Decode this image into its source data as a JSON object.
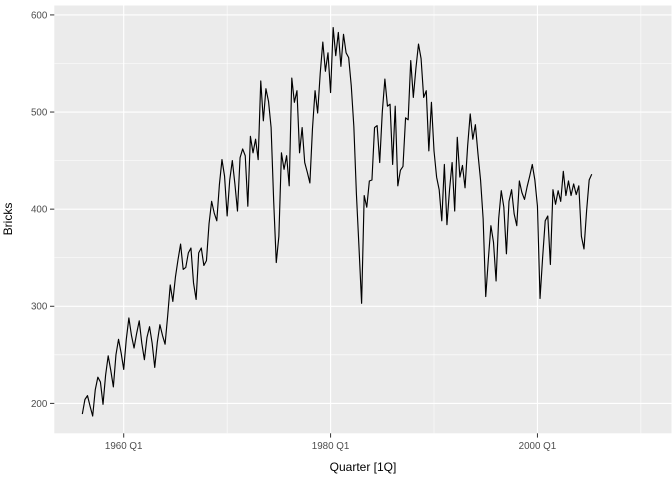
{
  "chart_data": {
    "type": "line",
    "title": "",
    "xlabel": "Quarter [1Q]",
    "ylabel": "Bricks",
    "series_name": "Bricks",
    "frequency": "quarterly",
    "start_period": "1956 Q1",
    "end_period": "2005 Q2",
    "start_year": 1956,
    "values": [
      189,
      204,
      208,
      197,
      187,
      214,
      227,
      222,
      199,
      229,
      249,
      234,
      217,
      250,
      266,
      252,
      235,
      266,
      288,
      270,
      257,
      272,
      285,
      262,
      245,
      268,
      279,
      262,
      237,
      263,
      281,
      270,
      261,
      290,
      322,
      305,
      330,
      348,
      364,
      338,
      340,
      355,
      360,
      324,
      307,
      355,
      360,
      342,
      347,
      385,
      408,
      396,
      388,
      425,
      451,
      434,
      393,
      430,
      450,
      426,
      398,
      453,
      462,
      455,
      403,
      475,
      458,
      472,
      451,
      532,
      491,
      524,
      511,
      484,
      408,
      345,
      372,
      458,
      441,
      455,
      424,
      535,
      510,
      522,
      458,
      484,
      448,
      438,
      427,
      483,
      522,
      499,
      540,
      572,
      542,
      561,
      520,
      587,
      558,
      582,
      547,
      580,
      561,
      556,
      527,
      485,
      415,
      360,
      303,
      414,
      402,
      429,
      430,
      484,
      486,
      448,
      500,
      534,
      506,
      508,
      446,
      506,
      424,
      440,
      444,
      494,
      492,
      553,
      515,
      545,
      570,
      555,
      515,
      522,
      460,
      510,
      460,
      433,
      420,
      388,
      446,
      384,
      420,
      448,
      398,
      474,
      433,
      445,
      422,
      465,
      498,
      472,
      487,
      457,
      430,
      390,
      310,
      348,
      383,
      366,
      326,
      390,
      419,
      402,
      354,
      408,
      420,
      395,
      383,
      429,
      417,
      410,
      423,
      434,
      446,
      430,
      403,
      308,
      350,
      388,
      393,
      343,
      420,
      405,
      419,
      408,
      439,
      414,
      429,
      414,
      426,
      415,
      424,
      372,
      359,
      398,
      430,
      436
    ],
    "x_axis": {
      "range": [
        1953.29,
        2012.96
      ],
      "ticks": [
        {
          "value": 1960,
          "label": "1960 Q1"
        },
        {
          "value": 1980,
          "label": "1980 Q1"
        },
        {
          "value": 2000,
          "label": "2000 Q1"
        }
      ],
      "minor_ticks": [
        1970,
        1990,
        2010
      ]
    },
    "y_axis": {
      "range": [
        169.2,
        609.7
      ],
      "ticks": [
        {
          "value": 200,
          "label": "200"
        },
        {
          "value": 300,
          "label": "300"
        },
        {
          "value": 400,
          "label": "400"
        },
        {
          "value": 500,
          "label": "500"
        },
        {
          "value": 600,
          "label": "600"
        }
      ],
      "minor_ticks": [
        250,
        350,
        450,
        550
      ]
    },
    "grid": true,
    "legend": "none"
  },
  "style": {
    "outer_bg": "#FFFFFF",
    "panel_bg": "#EBEBEB",
    "grid_color": "#FFFFFF",
    "line_color": "#000000",
    "axis_text_color": "#4D4D4D",
    "axis_title_color": "#000000",
    "tick_mark_color": "#333333"
  }
}
